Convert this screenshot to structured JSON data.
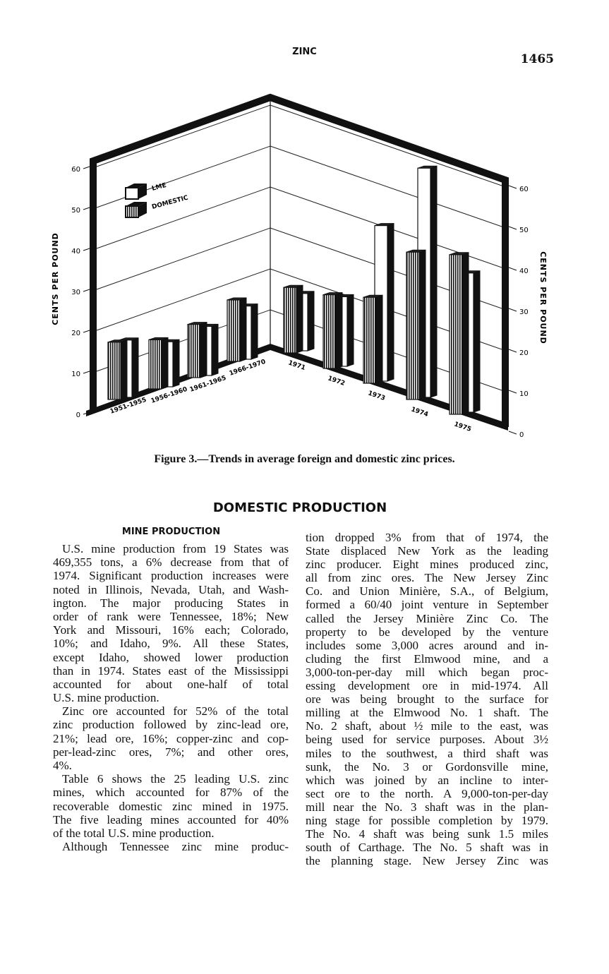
{
  "header": {
    "running_head": "ZINC",
    "page_number": "1465"
  },
  "figure": {
    "caption": "Figure 3.—Trends in average foreign and domestic zinc prices."
  },
  "chart_data": {
    "type": "bar",
    "style": "3d-corner",
    "ylabel_left": "CENTS PER POUND",
    "ylabel_right": "CENTS PER POUND",
    "yticks": [
      0,
      10,
      20,
      30,
      40,
      50,
      60
    ],
    "ylim": [
      0,
      60
    ],
    "grid": true,
    "legend_placement": "top-left",
    "categories": [
      "1951-1955",
      "1956-1960",
      "1961-1965",
      "1966-1970",
      "1971",
      "1972",
      "1973",
      "1974",
      "1975"
    ],
    "series": [
      {
        "name": "LME",
        "values": [
          14,
          11,
          12,
          13,
          14,
          17,
          38,
          56,
          34
        ],
        "fill": "#ffffff"
      },
      {
        "name": "DOMESTIC",
        "values": [
          14,
          12,
          13,
          15,
          16,
          18,
          21,
          36,
          39
        ],
        "fill": "hatched"
      }
    ]
  },
  "section_title": "DOMESTIC PRODUCTION",
  "subsection_title": "MINE PRODUCTION",
  "column1": [
    {
      "lines": [
        "U.S. mine production from 19 States was",
        "469,355 tons, a 6% decrease from that of",
        "1974. Significant production increases were",
        "noted in Illinois, Nevada, Utah, and Wash-",
        "ington. The major producing States in",
        "order of rank were Tennessee, 18%; New",
        "York and Missouri, 16% each; Colorado,",
        "10%; and Idaho, 9%. All these States,",
        "except Idaho, showed lower production",
        "than in 1974. States east of the Mississippi",
        "accounted for about one-half of total",
        "U.S. mine production."
      ],
      "continues": false
    },
    {
      "lines": [
        "Zinc ore accounted for 52% of the total",
        "zinc production followed by zinc-lead ore,",
        "21%; lead ore, 16%; copper-zinc and cop-",
        "per-lead-zinc ores, 7%; and other ores,",
        "4%."
      ],
      "continues": false
    },
    {
      "lines": [
        "Table 6 shows the 25 leading U.S. zinc",
        "mines, which accounted for 87% of the",
        "recoverable domestic zinc mined in 1975.",
        "The five leading mines accounted for 40%",
        "of the total U.S. mine production."
      ],
      "continues": false
    },
    {
      "lines": [
        "Although Tennessee zinc mine produc-"
      ],
      "continues": true
    }
  ],
  "column2": [
    {
      "lines": [
        "tion dropped 3% from that of 1974, the",
        "State displaced New York as the leading",
        "zinc producer. Eight mines produced zinc,",
        "all from zinc ores. The New Jersey Zinc",
        "Co. and Union Minière, S.A., of Belgium,",
        "formed a 60/40 joint venture in September",
        "called the Jersey Minière Zinc Co. The",
        "property to be developed by the venture",
        "includes some 3,000 acres around and in-",
        "cluding the first Elmwood mine, and a",
        "3,000-ton-per-day mill which began proc-",
        "essing development ore in mid-1974. All",
        "ore was being brought to the surface for",
        "milling at the Elmwood No. 1 shaft. The",
        "No. 2 shaft, about ½ mile to the east, was",
        "being used for service purposes. About 3½",
        "miles to the southwest, a third shaft was",
        "sunk, the No. 3 or Gordonsville mine,",
        "which was joined by an incline to inter-",
        "sect ore to the north. A 9,000-ton-per-day",
        "mill near the No. 3 shaft was in the plan-",
        "ning stage for possible completion by 1979.",
        "The No. 4 shaft was being sunk 1.5 miles",
        "south of Carthage. The No. 5 shaft was in",
        "the planning stage. New Jersey Zinc was"
      ],
      "continues": true,
      "indent": false
    }
  ]
}
